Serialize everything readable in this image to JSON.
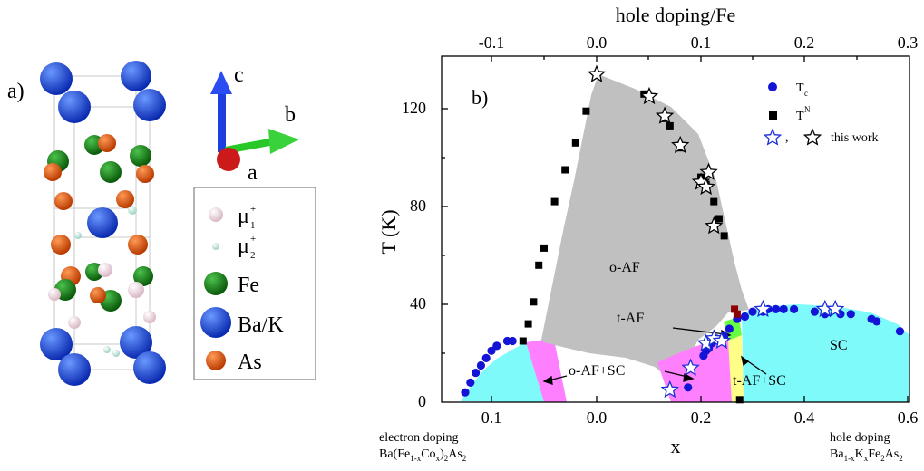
{
  "colors": {
    "oaf_region": "#c0c0c0",
    "sc_region": "#7ffafa",
    "mixed_region": "#ff80ff",
    "taf_region": "#66ff44",
    "tafsc_region": "#ffff88",
    "tc_points": "#1414d6",
    "tn_points": "#000000",
    "ba": "#1450e0",
    "fe": "#128a12",
    "as": "#ea5a0c",
    "muon": "#f4dce6",
    "muon2": "#cfeee6"
  },
  "panel_a": {
    "label": "a)",
    "axes": {
      "c_label": "c",
      "b_label": "b",
      "a_label": "a",
      "c_icon": "blue-arrow-icon",
      "b_icon": "green-arrow-icon",
      "a_icon": "red-sphere-icon"
    },
    "legend": [
      {
        "symbol": "μ",
        "sup": "+",
        "sub": "1",
        "icon": "muon-site-1-icon"
      },
      {
        "symbol": "μ",
        "sup": "+",
        "sub": "2",
        "icon": "muon-site-2-icon"
      },
      {
        "text": "Fe",
        "icon": "fe-atom-icon"
      },
      {
        "text": "Ba/K",
        "icon": "ba-atom-icon"
      },
      {
        "text": "As",
        "icon": "as-atom-icon"
      }
    ]
  },
  "chart_data": {
    "type": "scatter",
    "panel_label": "b)",
    "xlabel": "x",
    "ylabel": "T (K)",
    "top_xlabel": "hole doping/Fe",
    "xlim": [
      0.15,
      0.3
    ],
    "ylim": [
      0,
      140
    ],
    "x_ticks": [
      {
        "label": "0.1",
        "side": "electron"
      },
      {
        "label": "0.0",
        "side": "electron"
      },
      {
        "label": "0.2",
        "side": "hole"
      },
      {
        "label": "0.4",
        "side": "hole"
      },
      {
        "label": "0.6",
        "side": "hole"
      }
    ],
    "top_ticks": [
      "-0.1",
      "0.0",
      "0.1",
      "0.2",
      "0.3"
    ],
    "y_ticks": [
      "0",
      "40",
      "80",
      "120"
    ],
    "left_note": {
      "line1": "electron doping",
      "line2_parts": [
        "Ba(Fe",
        "1-x",
        "Co",
        "x",
        ")",
        "2",
        "As",
        "2"
      ]
    },
    "right_note": {
      "line1": "hole doping",
      "line2_parts": [
        "Ba",
        "1-x",
        "K",
        "x",
        "Fe",
        "2",
        "As",
        "2"
      ]
    },
    "legend": [
      {
        "label_main": "T",
        "label_sub": "c",
        "marker": "circle"
      },
      {
        "label_main": "T",
        "label_sup": "N",
        "marker": "square"
      },
      {
        "label_main": ",",
        "label_after": "this work",
        "marker": "star"
      }
    ],
    "regions": [
      {
        "name": "o-AF",
        "label": "o-AF"
      },
      {
        "name": "t-AF",
        "label": "t-AF"
      },
      {
        "name": "o-AF+SC",
        "label": "o-AF+SC"
      },
      {
        "name": "t-AF+SC",
        "label": "t-AF+SC"
      },
      {
        "name": "SC",
        "label": "SC"
      }
    ],
    "series": [
      {
        "name": "T_c",
        "marker": "circle",
        "points": [
          [
            -0.125,
            4
          ],
          [
            -0.12,
            8
          ],
          [
            -0.115,
            12
          ],
          [
            -0.11,
            15
          ],
          [
            -0.105,
            18
          ],
          [
            -0.1,
            21
          ],
          [
            -0.095,
            23
          ],
          [
            -0.085,
            25
          ],
          [
            -0.08,
            25
          ],
          [
            0.175,
            6
          ],
          [
            0.205,
            19
          ],
          [
            0.21,
            21
          ],
          [
            0.215,
            22
          ],
          [
            0.22,
            24
          ],
          [
            0.225,
            25
          ],
          [
            0.23,
            26
          ],
          [
            0.24,
            26
          ],
          [
            0.245,
            27
          ],
          [
            0.255,
            30
          ],
          [
            0.27,
            34
          ],
          [
            0.285,
            35
          ],
          [
            0.3,
            37
          ],
          [
            0.32,
            37
          ],
          [
            0.33,
            38
          ],
          [
            0.345,
            38
          ],
          [
            0.36,
            38
          ],
          [
            0.38,
            38
          ],
          [
            0.42,
            37
          ],
          [
            0.44,
            36
          ],
          [
            0.47,
            36
          ],
          [
            0.49,
            36
          ],
          [
            0.53,
            34
          ],
          [
            0.54,
            33
          ],
          [
            0.585,
            29
          ]
        ]
      },
      {
        "name": "T_N",
        "marker": "square",
        "points": [
          [
            -0.07,
            25
          ],
          [
            -0.065,
            32
          ],
          [
            -0.06,
            41
          ],
          [
            -0.055,
            56
          ],
          [
            -0.05,
            63
          ],
          [
            -0.04,
            82
          ],
          [
            -0.03,
            95
          ],
          [
            -0.02,
            106
          ],
          [
            -0.01,
            119
          ],
          [
            0.09,
            126
          ],
          [
            0.13,
            116
          ],
          [
            0.14,
            113
          ],
          [
            0.16,
            104
          ],
          [
            0.2,
            92
          ],
          [
            0.21,
            89
          ],
          [
            0.225,
            82
          ],
          [
            0.235,
            75
          ],
          [
            0.245,
            68
          ],
          [
            0.265,
            38
          ],
          [
            0.27,
            36
          ],
          [
            0.275,
            1
          ]
        ]
      },
      {
        "name": "this work",
        "marker": "star",
        "points": [
          [
            0.0,
            134
          ],
          [
            0.1,
            125
          ],
          [
            0.13,
            117
          ],
          [
            0.16,
            105
          ],
          [
            0.2,
            90
          ],
          [
            0.21,
            88
          ],
          [
            0.215,
            94
          ],
          [
            0.225,
            72
          ],
          [
            0.14,
            5
          ],
          [
            0.18,
            14
          ],
          [
            0.21,
            24
          ],
          [
            0.225,
            26
          ],
          [
            0.24,
            25
          ],
          [
            0.32,
            38
          ],
          [
            0.44,
            38
          ],
          [
            0.46,
            38
          ]
        ]
      }
    ]
  }
}
